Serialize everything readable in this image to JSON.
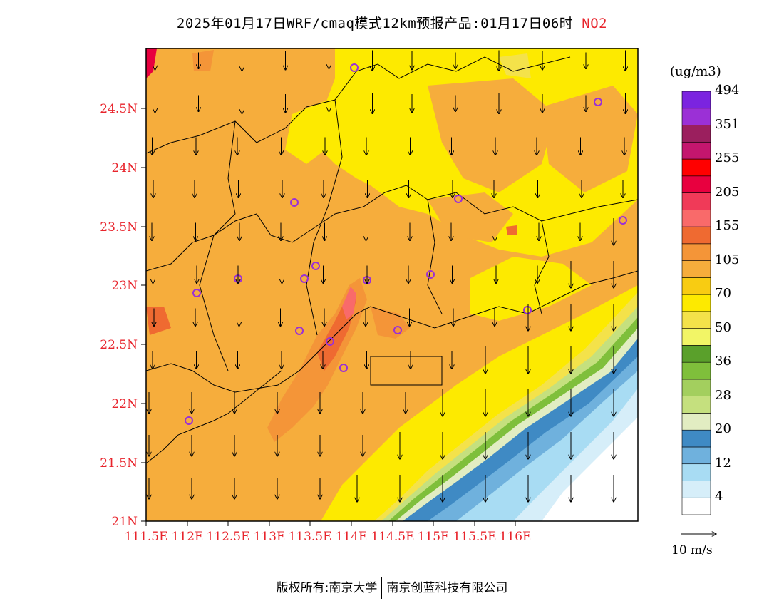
{
  "header": {
    "title": "2025年01月17日WRF/cmaq模式12km预报产品:01月17日06时",
    "species": "NO2",
    "species_color": "#e8242c"
  },
  "axes": {
    "lat_ticks": [
      "24.5N",
      "24N",
      "23.5N",
      "23N",
      "22.5N",
      "22N",
      "21.5N",
      "21N"
    ],
    "lon_ticks": [
      "111.5E",
      "112E",
      "112.5E",
      "113E",
      "113.5E",
      "114E",
      "114.5E",
      "115E",
      "115.5E",
      "116E"
    ],
    "label_color": "#e8242c"
  },
  "colorbar": {
    "unit": "(ug/m3)",
    "colors": [
      "#ffffff",
      "#d6eef9",
      "#a8dcf3",
      "#6fb1dd",
      "#3f8ac4",
      "#e2edc2",
      "#c5e07e",
      "#a3cf5e",
      "#7fbf3b",
      "#5aa02b",
      "#f2f566",
      "#f4e24a",
      "#fdea00",
      "#f8cc12",
      "#f6ad3c",
      "#f49538",
      "#ef6a31",
      "#f96a6a",
      "#f03a58",
      "#e8003f",
      "#ff0000",
      "#c4166e",
      "#9b1f5e",
      "#9b30d6",
      "#7b24e0"
    ],
    "labels": [
      "4",
      "12",
      "20",
      "28",
      "36",
      "50",
      "70",
      "105",
      "155",
      "205",
      "255",
      "351",
      "494"
    ]
  },
  "wind_reference": {
    "label": "10 m/s"
  },
  "footer": {
    "owner1": "版权所有:南京大学",
    "owner2": "南京创蓝科技有限公司"
  }
}
